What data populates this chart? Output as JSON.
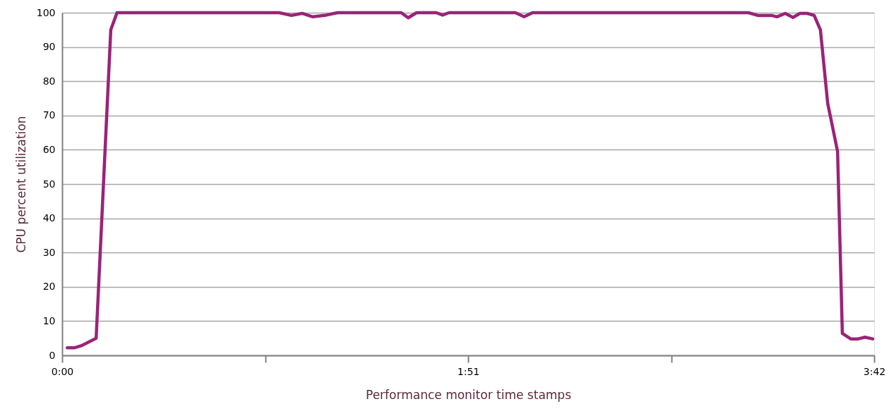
{
  "chart_data": {
    "type": "line",
    "xlabel": "Performance monitor time stamps",
    "ylabel": "CPU percent utilization",
    "x": [
      1.4,
      3.3,
      5.2,
      9.3,
      13.3,
      15,
      59.3,
      62.7,
      65.6,
      68.5,
      72.2,
      75.3,
      92.7,
      94.6,
      96.9,
      102.3,
      104,
      105.8,
      123.9,
      126.3,
      128.6,
      187.6,
      190.2,
      194,
      195.4,
      197.7,
      199.8,
      201.7,
      203.7,
      205.6,
      207.3,
      209.3,
      212,
      213.3,
      215.6,
      217.6,
      219.5,
      221.6
    ],
    "series": [
      {
        "color": "#9b2378",
        "values": [
          2.2,
          2.2,
          2.8,
          5,
          95,
          100,
          100,
          99.2,
          99.8,
          98.8,
          99.3,
          100,
          100,
          98.5,
          100,
          100,
          99.3,
          100,
          100,
          98.8,
          100,
          100,
          99.2,
          99.2,
          98.8,
          99.8,
          98.6,
          99.8,
          99.8,
          99.2,
          95,
          73.5,
          59.5,
          6.4,
          4.8,
          4.8,
          5.3,
          4.8
        ]
      }
    ],
    "xlim": [
      0,
      222
    ],
    "xticks": [
      {
        "value": 0,
        "label": "0:00"
      },
      {
        "value": 55.5,
        "label": null
      },
      {
        "value": 111,
        "label": "1:51"
      },
      {
        "value": 166.5,
        "label": null
      },
      {
        "value": 222,
        "label": "3:42"
      }
    ],
    "ylim": [
      0,
      100
    ],
    "yticks": [
      0,
      10,
      20,
      30,
      40,
      50,
      60,
      70,
      80,
      90,
      100
    ],
    "grid": "y",
    "marker": "none",
    "line_style": "solid"
  }
}
